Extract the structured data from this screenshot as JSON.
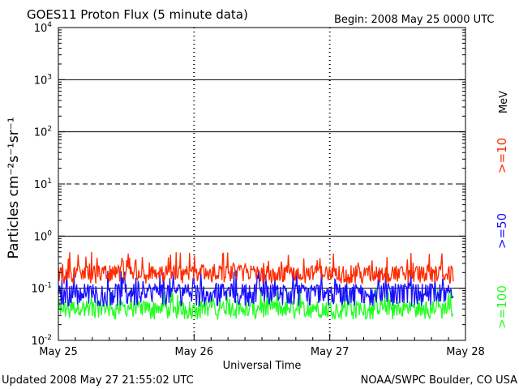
{
  "chart_data": {
    "type": "line",
    "title": "GOES11 Proton Flux (5 minute data)",
    "begin_label": "Begin: 2008 May 25 0000 UTC",
    "xlabel": "Universal Time",
    "ylabel": "Particles cm⁻²s⁻¹sr⁻¹",
    "y_scale": "log",
    "ylim": [
      0.01,
      10000
    ],
    "xlim_days": [
      0,
      3
    ],
    "x_tick_labels": [
      "May 25",
      "May 26",
      "May 27",
      "May 28"
    ],
    "y_tick_labels": [
      {
        "base": "10",
        "exp": "-2"
      },
      {
        "base": "10",
        "exp": "-1"
      },
      {
        "base": "10",
        "exp": "0"
      },
      {
        "base": "10",
        "exp": "1"
      },
      {
        "base": "10",
        "exp": "2"
      },
      {
        "base": "10",
        "exp": "3"
      },
      {
        "base": "10",
        "exp": "4"
      }
    ],
    "threshold_lines": [
      {
        "value": 1000,
        "style": "solid"
      },
      {
        "value": 100,
        "style": "solid"
      },
      {
        "value": 10,
        "style": "dashed"
      },
      {
        "value": 1,
        "style": "solid"
      },
      {
        "value": 0.1,
        "style": "solid"
      }
    ],
    "legend_unit": "MeV",
    "series": [
      {
        "name": ">=10",
        "color": "#ff2a00",
        "approx_base": 0.19,
        "approx_min": 0.12,
        "approx_max": 0.5
      },
      {
        "name": ">=50",
        "color": "#1a10ff",
        "approx_base": 0.085,
        "approx_min": 0.045,
        "approx_max": 0.23
      },
      {
        "name": ">=100",
        "color": "#22ff22",
        "approx_base": 0.04,
        "approx_min": 0.025,
        "approx_max": 0.1
      }
    ]
  },
  "footer": {
    "updated": "Updated 2008 May 27 21:55:02 UTC",
    "source": "NOAA/SWPC Boulder, CO USA"
  }
}
